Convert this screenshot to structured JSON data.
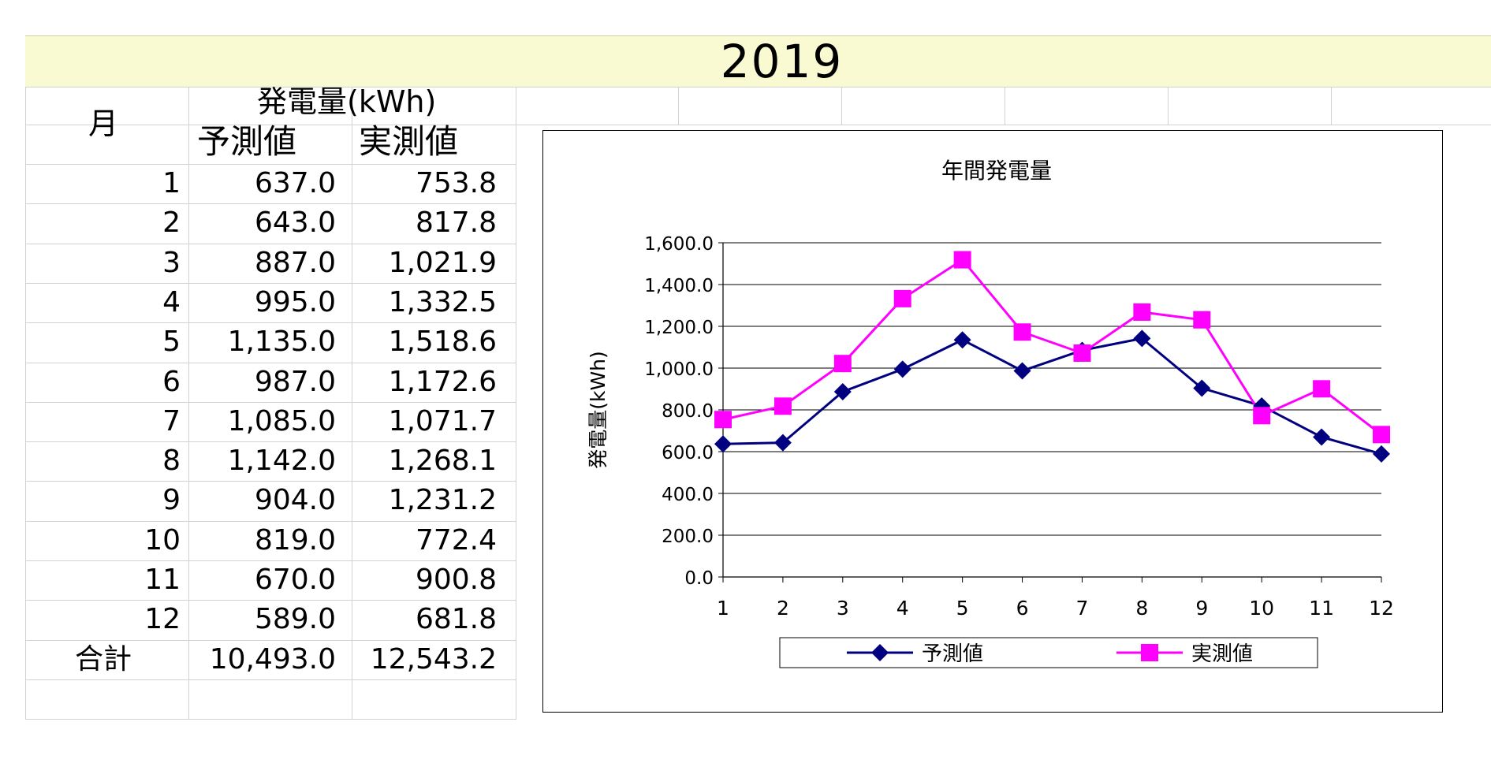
{
  "year_title": "2019",
  "table": {
    "month_header": "月",
    "gen_header": "発電量(kWh)",
    "pred_header": "予測値",
    "act_header": "実測値",
    "rows": [
      {
        "month": "1",
        "pred": "637.0",
        "act": "753.8"
      },
      {
        "month": "2",
        "pred": "643.0",
        "act": "817.8"
      },
      {
        "month": "3",
        "pred": "887.0",
        "act": "1,021.9"
      },
      {
        "month": "4",
        "pred": "995.0",
        "act": "1,332.5"
      },
      {
        "month": "5",
        "pred": "1,135.0",
        "act": "1,518.6"
      },
      {
        "month": "6",
        "pred": "987.0",
        "act": "1,172.6"
      },
      {
        "month": "7",
        "pred": "1,085.0",
        "act": "1,071.7"
      },
      {
        "month": "8",
        "pred": "1,142.0",
        "act": "1,268.1"
      },
      {
        "month": "9",
        "pred": "904.0",
        "act": "1,231.2"
      },
      {
        "month": "10",
        "pred": "819.0",
        "act": "772.4"
      },
      {
        "month": "11",
        "pred": "670.0",
        "act": "900.8"
      },
      {
        "month": "12",
        "pred": "589.0",
        "act": "681.8"
      }
    ],
    "total": {
      "label": "合計",
      "pred": "10,493.0",
      "act": "12,543.2"
    }
  },
  "chart_data": {
    "type": "line",
    "title": "年間発電量",
    "ylabel": "発電量(kWh)",
    "xlabel": "",
    "categories": [
      "1",
      "2",
      "3",
      "4",
      "5",
      "6",
      "7",
      "8",
      "9",
      "10",
      "11",
      "12"
    ],
    "ylim": [
      0,
      1600
    ],
    "yticks": [
      "0.0",
      "200.0",
      "400.0",
      "600.0",
      "800.0",
      "1,000.0",
      "1,200.0",
      "1,400.0",
      "1,600.0"
    ],
    "grid": true,
    "legend": "bottom",
    "series": [
      {
        "name": "予測値",
        "color": "#000080",
        "marker": "diamond",
        "values": [
          637,
          643,
          887,
          995,
          1135,
          987,
          1085,
          1142,
          904,
          819,
          670,
          589
        ]
      },
      {
        "name": "実測値",
        "color": "#ff00ff",
        "marker": "square",
        "values": [
          753.8,
          817.8,
          1021.9,
          1332.5,
          1518.6,
          1172.6,
          1071.7,
          1268.1,
          1231.2,
          772.4,
          900.8,
          681.8
        ]
      }
    ]
  }
}
